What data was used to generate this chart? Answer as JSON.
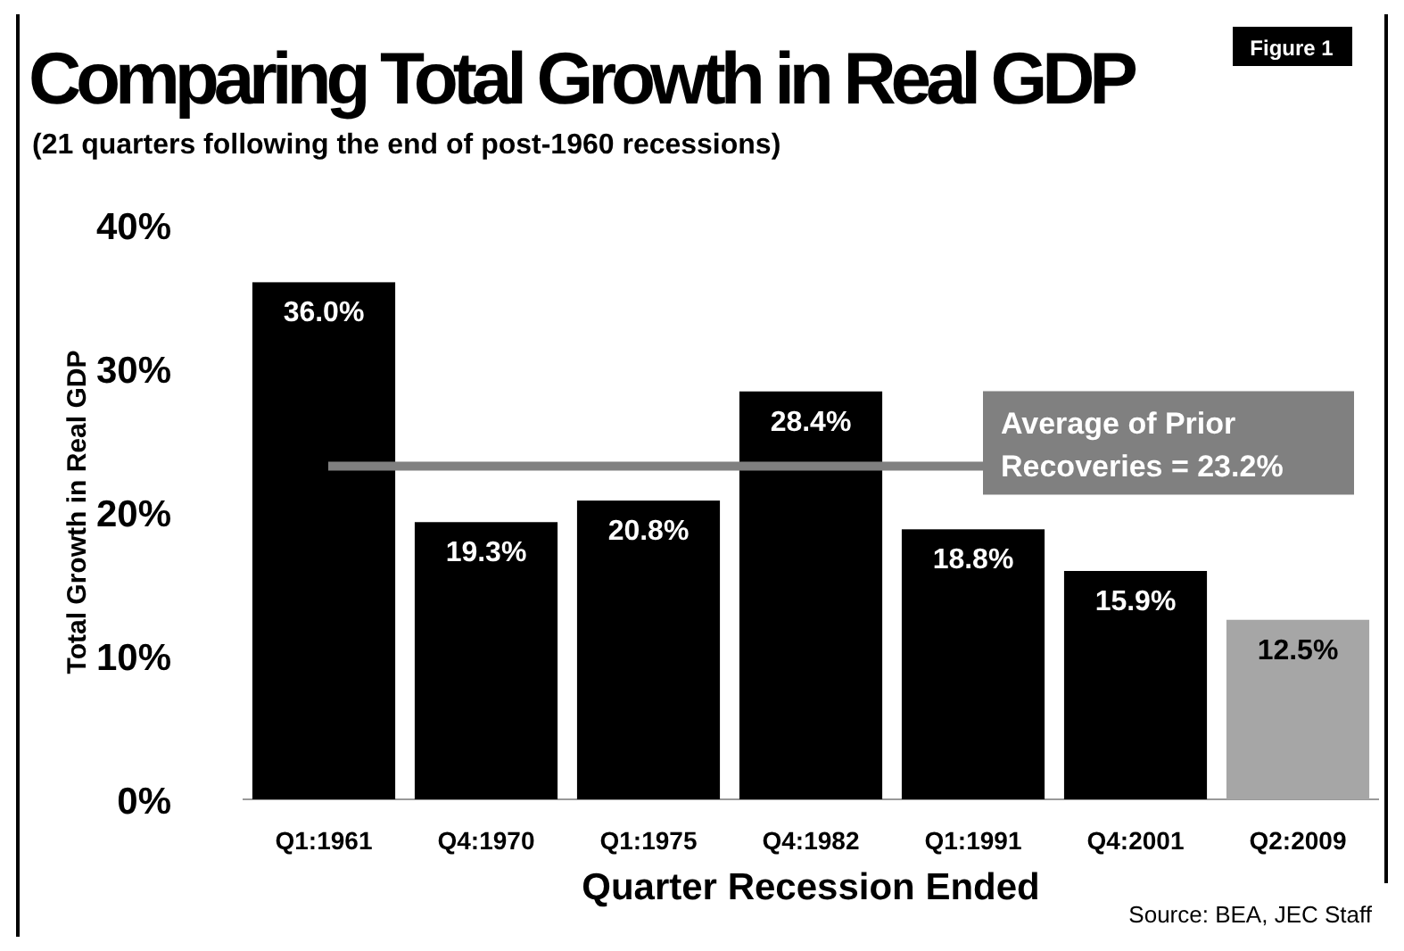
{
  "chart_data": {
    "type": "bar",
    "title": "Comparing Total Growth in Real GDP",
    "subtitle": "(21 quarters following the end of post-1960 recessions)",
    "xlabel": "Quarter Recession Ended",
    "ylabel": "Total Growth in Real GDP",
    "categories": [
      "Q1:1961",
      "Q4:1970",
      "Q1:1975",
      "Q4:1982",
      "Q1:1991",
      "Q4:2001",
      "Q2:2009"
    ],
    "values": [
      36.0,
      19.3,
      20.8,
      28.4,
      18.8,
      15.9,
      12.5
    ],
    "colors": [
      "#000000",
      "#000000",
      "#000000",
      "#000000",
      "#000000",
      "#000000",
      "#a6a6a6"
    ],
    "value_labels": [
      "36.0%",
      "19.3%",
      "20.8%",
      "28.4%",
      "18.8%",
      "15.9%",
      "12.5%"
    ],
    "ylim": [
      0,
      40
    ],
    "yticks": [
      {
        "value": 0,
        "label": "0%"
      },
      {
        "value": 10,
        "label": "10%"
      },
      {
        "value": 20,
        "label": "20%"
      },
      {
        "value": 30,
        "label": "30%"
      },
      {
        "value": 40,
        "label": "40%"
      }
    ],
    "ref_lines": [
      {
        "axis": "y",
        "value": 23.2,
        "label": "Average of Prior Recoveries = 23.2%",
        "color": "#808080"
      }
    ],
    "annotations": [
      "Figure 1",
      "Source:  BEA, JEC Staff"
    ],
    "grid": false
  }
}
